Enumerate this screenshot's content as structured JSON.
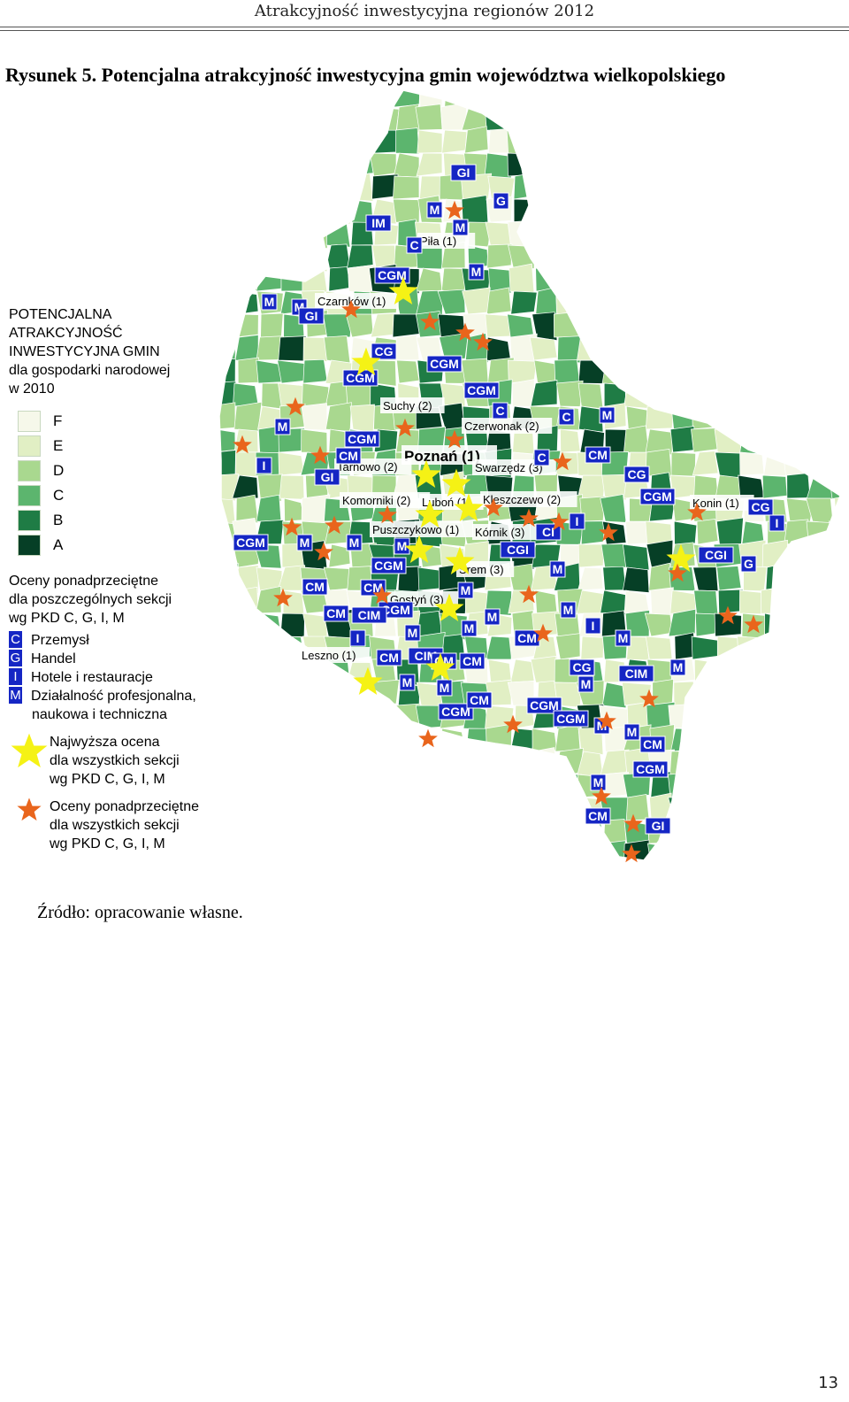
{
  "header": {
    "running_title": "Atrakcyjność inwestycyjna regionów 2012"
  },
  "figure": {
    "title": "Rysunek 5. Potencjalna atrakcyjność inwestycyjna gmin województwa wielkopolskiego",
    "source": "Źródło: opracowanie własne."
  },
  "page_number": "13",
  "legend": {
    "title": "POTENCJALNA\nATRAKCYJNOŚĆ\nINWESTYCYJNA GMIN\ndla gospodarki narodowej\nw 2010",
    "classes": [
      {
        "label": "F",
        "color": "#f6f8ea"
      },
      {
        "label": "E",
        "color": "#e1efc4"
      },
      {
        "label": "D",
        "color": "#a9d88f"
      },
      {
        "label": "C",
        "color": "#5cb56e"
      },
      {
        "label": "B",
        "color": "#1f7c45"
      },
      {
        "label": "A",
        "color": "#063f26"
      }
    ],
    "sections_title": "Oceny ponadprzeciętne\ndla poszczególnych sekcji\nwg PKD    C, G, I, M",
    "sections": [
      {
        "code": "C",
        "label": "Przemysł"
      },
      {
        "code": "G",
        "label": "Handel"
      },
      {
        "code": "I",
        "label": "Hotele i restauracje"
      },
      {
        "code": "M",
        "label": "Działalność profesjonalna,",
        "extra": "naukowa i techniczna"
      }
    ],
    "markers": [
      {
        "icon": "yellow-star",
        "color": "#f5f215",
        "label": "Najwyższa ocena\ndla wszystkich sekcji\nwg PKD       C, G, I, M"
      },
      {
        "icon": "orange-star",
        "color": "#e9651c",
        "label": "Oceny ponadprzeciętne\ndla wszystkich sekcji\nwg PKD     C, G, I, M"
      }
    ]
  },
  "map": {
    "places": [
      {
        "name": "Piła (1)"
      },
      {
        "name": "Czarnków (1)"
      },
      {
        "name": "Suchy (2)"
      },
      {
        "name": "Czerwonak (2)"
      },
      {
        "name": "Poznań (1)"
      },
      {
        "name": "Tarnowo (2)"
      },
      {
        "name": "Swarzędz (3)"
      },
      {
        "name": "Komorniki (2)"
      },
      {
        "name": "Luboń (1)"
      },
      {
        "name": "Kleszczewo (2)"
      },
      {
        "name": "Konin (1)"
      },
      {
        "name": "Puszczykowo (1)"
      },
      {
        "name": "Kórnik (3)"
      },
      {
        "name": "Śrem (3)"
      },
      {
        "name": "Gostyń (3)"
      },
      {
        "name": "Leszno (1)"
      }
    ],
    "codes": [
      "GI",
      "G",
      "IM",
      "M",
      "M",
      "C",
      "M",
      "CGM",
      "M",
      "M",
      "GI",
      "CG",
      "CGM",
      "CGM",
      "CGM",
      "C",
      "C",
      "M",
      "M",
      "CGM",
      "CM",
      "C",
      "CM",
      "CG",
      "I",
      "GI",
      "CGM",
      "CM",
      "CGM",
      "CI",
      "I",
      "CG",
      "CGM",
      "M",
      "M",
      "M",
      "M",
      "CGI",
      "CGI",
      "G",
      "I",
      "M",
      "CGM",
      "M",
      "CM",
      "M",
      "I",
      "CM",
      "CIM",
      "M",
      "M",
      "CM",
      "I",
      "M",
      "CM",
      "CIM",
      "CM",
      "CM",
      "M",
      "CG",
      "M",
      "CIM",
      "M",
      "M",
      "CGM",
      "CM",
      "CGM",
      "CGM",
      "M",
      "M",
      "CM",
      "CGM",
      "M",
      "CM",
      "GI"
    ]
  }
}
